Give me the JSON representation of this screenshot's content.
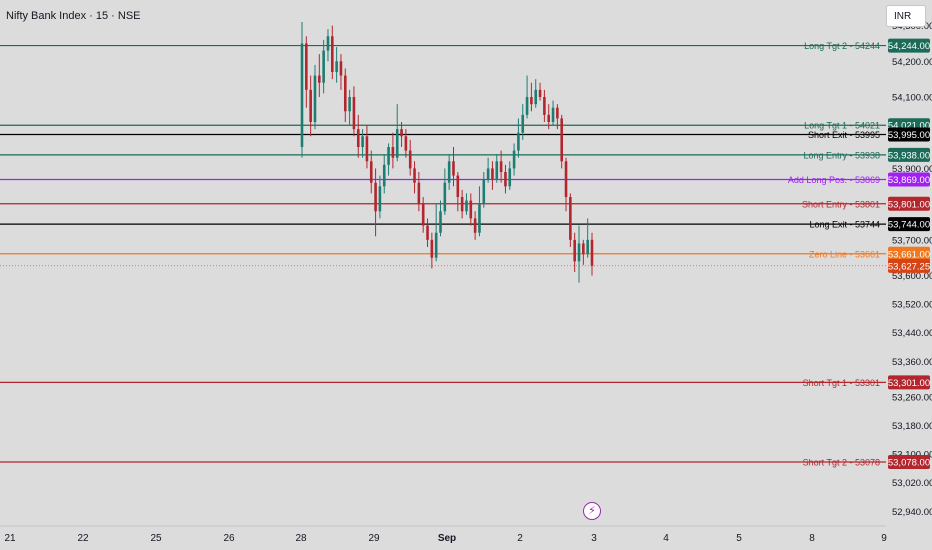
{
  "header": {
    "symbol_title": "Nifty Bank Index · 15 · NSE",
    "currency_button": "INR"
  },
  "event_icon": "lightning-icon",
  "colors": {
    "background": "#dcdcdc",
    "up_candle": "#1e7d72",
    "down_candle": "#b3262e",
    "green_line": "#1b6b58",
    "black_line": "#000000",
    "purple_line": "#a020f0",
    "red_line": "#b3262e",
    "orange_line": "#f07820",
    "last_price": "#d84315"
  },
  "chart_data": {
    "type": "candlestick",
    "title": "Nifty Bank Index · 15 · NSE",
    "ylim": [
      52910,
      54310
    ],
    "y_ticks": [
      {
        "value": 54300,
        "label": "54,300.00"
      },
      {
        "value": 54200,
        "label": "54,200.00"
      },
      {
        "value": 54100,
        "label": "54,100.00"
      },
      {
        "value": 53900,
        "label": "53,900.00"
      },
      {
        "value": 53700,
        "label": "53,700.00"
      },
      {
        "value": 53600,
        "label": "53,600.00"
      },
      {
        "value": 53520,
        "label": "53,520.00"
      },
      {
        "value": 53440,
        "label": "53,440.00"
      },
      {
        "value": 53360,
        "label": "53,360.00"
      },
      {
        "value": 53260,
        "label": "53,260.00"
      },
      {
        "value": 53180,
        "label": "53,180.00"
      },
      {
        "value": 53100,
        "label": "53,100.00"
      },
      {
        "value": 53020,
        "label": "53,020.00"
      },
      {
        "value": 52940,
        "label": "52,940.00"
      }
    ],
    "x_ticks": [
      "21",
      "22",
      "25",
      "26",
      "28",
      "29",
      "Sep",
      "2",
      "3",
      "4",
      "5",
      "8",
      "9"
    ],
    "levels": [
      {
        "label": "Long Tgt 2 - 54244",
        "price": 54244,
        "badge": "54,244.00",
        "color": "#1b6b58"
      },
      {
        "label": "Long Tgt 1 - 54021",
        "price": 54021,
        "badge": "54,021.00",
        "color": "#1b6b58"
      },
      {
        "label": "Short Exit - 53995",
        "price": 53995,
        "badge": "53,995.00",
        "color": "#000000"
      },
      {
        "label": "Long Entry - 53938",
        "price": 53938,
        "badge": "53,938.00",
        "color": "#1b6b58"
      },
      {
        "label": "Add Long Pos. - 53869",
        "price": 53869,
        "badge": "53,869.00",
        "color": "#a020f0"
      },
      {
        "label": "Short Entry - 53801",
        "price": 53801,
        "badge": "53,801.00",
        "color": "#b3262e"
      },
      {
        "label": "Long Exit - 53744",
        "price": 53744,
        "badge": "53,744.00",
        "color": "#000000"
      },
      {
        "label": "Zero Line - 53661",
        "price": 53661,
        "badge": "53,661.00",
        "color": "#f07820"
      },
      {
        "label": "Short Tgt 1 - 53301",
        "price": 53301,
        "badge": "53,301.00",
        "color": "#b3262e"
      },
      {
        "label": "Short Tgt 2 - 53078",
        "price": 53078,
        "badge": "53,078.00",
        "color": "#b3262e"
      }
    ],
    "last_price": {
      "value": 53627.25,
      "badge": "53,627.25"
    },
    "candles": [
      [
        53960,
        54250,
        54310,
        53930
      ],
      [
        54250,
        54120,
        54270,
        54070
      ],
      [
        54120,
        54030,
        54160,
        53990
      ],
      [
        54030,
        54160,
        54190,
        54010
      ],
      [
        54160,
        54140,
        54220,
        54100
      ],
      [
        54140,
        54230,
        54260,
        54110
      ],
      [
        54230,
        54270,
        54290,
        54200
      ],
      [
        54270,
        54170,
        54300,
        54150
      ],
      [
        54170,
        54200,
        54240,
        54140
      ],
      [
        54200,
        54160,
        54220,
        54120
      ],
      [
        54160,
        54060,
        54180,
        54030
      ],
      [
        54060,
        54100,
        54120,
        54020
      ],
      [
        54100,
        54010,
        54130,
        53990
      ],
      [
        54010,
        53960,
        54050,
        53930
      ],
      [
        53960,
        53990,
        54010,
        53930
      ],
      [
        53990,
        53920,
        54020,
        53900
      ],
      [
        53920,
        53860,
        53950,
        53830
      ],
      [
        53860,
        53780,
        53900,
        53710
      ],
      [
        53780,
        53850,
        53880,
        53760
      ],
      [
        53850,
        53910,
        53940,
        53830
      ],
      [
        53910,
        53960,
        53970,
        53880
      ],
      [
        53960,
        53930,
        54000,
        53900
      ],
      [
        53930,
        54010,
        54080,
        53920
      ],
      [
        54010,
        53990,
        54030,
        53960
      ],
      [
        53990,
        53950,
        54010,
        53930
      ],
      [
        53950,
        53900,
        53980,
        53880
      ],
      [
        53900,
        53860,
        53920,
        53830
      ],
      [
        53860,
        53800,
        53890,
        53780
      ],
      [
        53800,
        53740,
        53820,
        53720
      ],
      [
        53740,
        53700,
        53760,
        53680
      ],
      [
        53700,
        53650,
        53720,
        53620
      ],
      [
        53650,
        53720,
        53800,
        53640
      ],
      [
        53720,
        53780,
        53810,
        53710
      ],
      [
        53780,
        53860,
        53900,
        53770
      ],
      [
        53860,
        53920,
        53940,
        53840
      ],
      [
        53920,
        53880,
        53960,
        53850
      ],
      [
        53880,
        53820,
        53890,
        53780
      ],
      [
        53820,
        53780,
        53840,
        53760
      ],
      [
        53780,
        53810,
        53830,
        53770
      ],
      [
        53810,
        53760,
        53830,
        53740
      ],
      [
        53760,
        53720,
        53780,
        53700
      ],
      [
        53720,
        53800,
        53850,
        53710
      ],
      [
        53800,
        53870,
        53890,
        53790
      ],
      [
        53870,
        53900,
        53930,
        53860
      ],
      [
        53900,
        53870,
        53920,
        53840
      ],
      [
        53870,
        53920,
        53940,
        53860
      ],
      [
        53920,
        53890,
        53950,
        53860
      ],
      [
        53890,
        53850,
        53910,
        53830
      ],
      [
        53850,
        53900,
        53920,
        53840
      ],
      [
        53900,
        53950,
        53970,
        53880
      ],
      [
        53950,
        54000,
        54040,
        53930
      ],
      [
        54000,
        54050,
        54080,
        53980
      ],
      [
        54050,
        54100,
        54160,
        54040
      ],
      [
        54100,
        54080,
        54140,
        54060
      ],
      [
        54080,
        54120,
        54150,
        54070
      ],
      [
        54120,
        54100,
        54140,
        54090
      ],
      [
        54100,
        54050,
        54120,
        54030
      ],
      [
        54050,
        54030,
        54080,
        54010
      ],
      [
        54030,
        54070,
        54090,
        54020
      ],
      [
        54070,
        54040,
        54080,
        54010
      ],
      [
        54040,
        53920,
        54050,
        53900
      ],
      [
        53920,
        53820,
        53930,
        53780
      ],
      [
        53820,
        53700,
        53830,
        53680
      ],
      [
        53700,
        53640,
        53720,
        53610
      ],
      [
        53640,
        53690,
        53740,
        53580
      ],
      [
        53690,
        53660,
        53700,
        53630
      ],
      [
        53660,
        53700,
        53760,
        53650
      ],
      [
        53700,
        53627.25,
        53720,
        53600
      ]
    ]
  }
}
